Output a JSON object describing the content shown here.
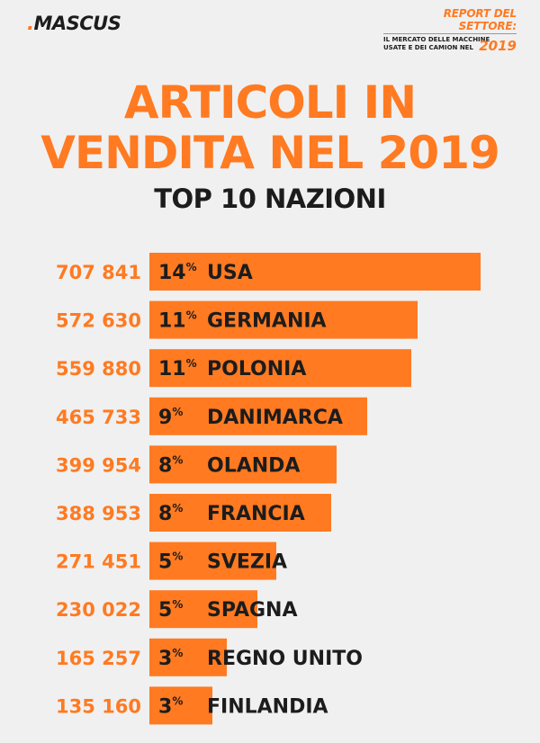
{
  "brand": {
    "dot": ".",
    "name": "MASCUS"
  },
  "report": {
    "title": "REPORT DEL SETTORE:",
    "line1": "IL MERCATO DELLE MACCHINE",
    "line2": "USATE E DEI CAMION NEL",
    "year": "2019"
  },
  "heading": {
    "line1": "ARTICOLI IN",
    "line2": "VENDITA NEL 2019",
    "subtitle": "TOP 10 NAZIONI"
  },
  "colors": {
    "accent": "#ff7a21",
    "dark": "#1c1c1c",
    "background": "#f0f0f0"
  },
  "chart_data": {
    "type": "bar",
    "orientation": "horizontal",
    "title": "ARTICOLI IN VENDITA NEL 2019",
    "subtitle": "TOP 10 NAZIONI",
    "categories": [
      "USA",
      "GERMANIA",
      "POLONIA",
      "DANIMARCA",
      "OLANDA",
      "FRANCIA",
      "SVEZIA",
      "SPAGNA",
      "REGNO UNITO",
      "FINLANDIA"
    ],
    "values": [
      707841,
      572630,
      559880,
      465733,
      399954,
      388953,
      271451,
      230022,
      165257,
      135160
    ],
    "value_labels": [
      "707 841",
      "572 630",
      "559 880",
      "465 733",
      "399 954",
      "388 953",
      "271 451",
      "230 022",
      "165 257",
      "135 160"
    ],
    "percent_labels": [
      "14",
      "11",
      "11",
      "9",
      "8",
      "8",
      "5",
      "5",
      "3",
      "3"
    ],
    "percent_sign": "%",
    "grid": false
  }
}
